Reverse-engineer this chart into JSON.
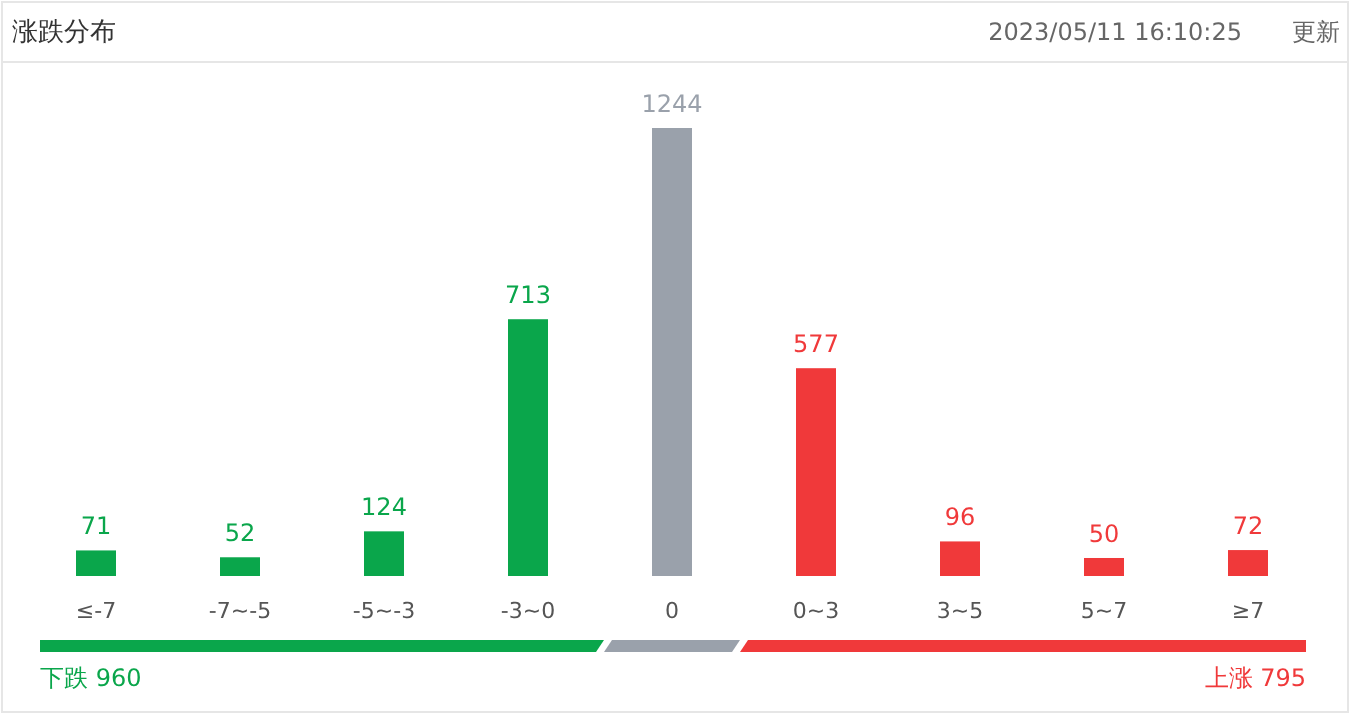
{
  "chart_data": {
    "type": "bar",
    "title": "涨跌分布",
    "subtitle": "2023/05/11 16:10:25",
    "categories": [
      "≤-7",
      "-7~-5",
      "-5~-3",
      "-3~0",
      "0",
      "0~3",
      "3~5",
      "5~7",
      "≥7"
    ],
    "values": [
      71,
      52,
      124,
      713,
      1244,
      577,
      96,
      50,
      72
    ],
    "colors": [
      "#0aa64b",
      "#0aa64b",
      "#0aa64b",
      "#0aa64b",
      "#9aa1ab",
      "#f0393a",
      "#f0393a",
      "#f0393a",
      "#f0393a"
    ],
    "data_labels": true,
    "annotations": [
      "更新",
      "下跌 960",
      "上涨 795"
    ]
  }
}
